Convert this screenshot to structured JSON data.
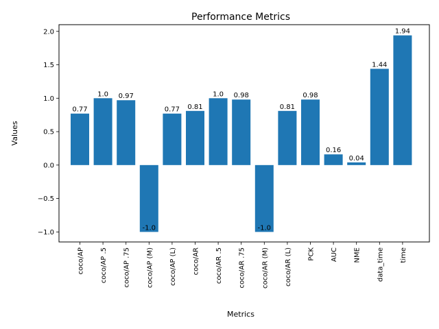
{
  "chart_data": {
    "type": "bar",
    "title": "Performance Metrics",
    "xlabel": "Metrics",
    "ylabel": "Values",
    "categories": [
      "coco/AP",
      "coco/AP .5",
      "coco/AP .75",
      "coco/AP (M)",
      "coco/AP (L)",
      "coco/AR",
      "coco/AR .5",
      "coco/AR .75",
      "coco/AR (M)",
      "coco/AR (L)",
      "PCK",
      "AUC",
      "NME",
      "data_time",
      "time"
    ],
    "values": [
      0.77,
      1.0,
      0.97,
      -1.0,
      0.77,
      0.81,
      1.0,
      0.98,
      -1.0,
      0.81,
      0.98,
      0.16,
      0.04,
      1.44,
      1.94
    ],
    "value_labels": [
      "0.77",
      "1.0",
      "0.97",
      "-1.0",
      "0.77",
      "0.81",
      "1.0",
      "0.98",
      "-1.0",
      "0.81",
      "0.98",
      "0.16",
      "0.04",
      "1.44",
      "1.94"
    ],
    "ylim": [
      -1.15,
      2.1
    ],
    "yticks": [
      -1.0,
      -0.5,
      0.0,
      0.5,
      1.0,
      1.5,
      2.0
    ],
    "ytick_labels": [
      "−1.0",
      "−0.5",
      "0.0",
      "0.5",
      "1.0",
      "1.5",
      "2.0"
    ],
    "bar_color": "#1f77b4",
    "grid": false,
    "legend": "none"
  }
}
